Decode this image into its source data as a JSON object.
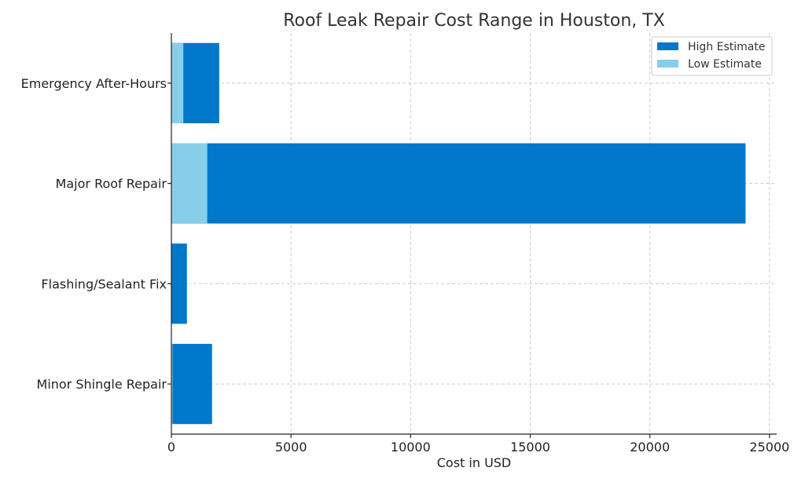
{
  "chart_data": {
    "type": "bar",
    "orientation": "horizontal",
    "title": "Roof Leak Repair Cost Range in Houston, TX",
    "xlabel": "Cost in USD",
    "ylabel": "",
    "xlim": [
      0,
      25300
    ],
    "xticks": [
      0,
      5000,
      10000,
      15000,
      20000,
      25000
    ],
    "categories": [
      "Minor Shingle Repair",
      "Flashing/Sealant Fix",
      "Major Roof Repair",
      "Emergency After-Hours"
    ],
    "series": [
      {
        "name": "High Estimate",
        "color": "#0077c8",
        "values": [
          1700,
          650,
          24000,
          2000
        ]
      },
      {
        "name": "Low Estimate",
        "color": "#87ceeb",
        "values": [
          50,
          0,
          1500,
          500
        ]
      }
    ],
    "grid": true,
    "legend_position": "top-right"
  }
}
